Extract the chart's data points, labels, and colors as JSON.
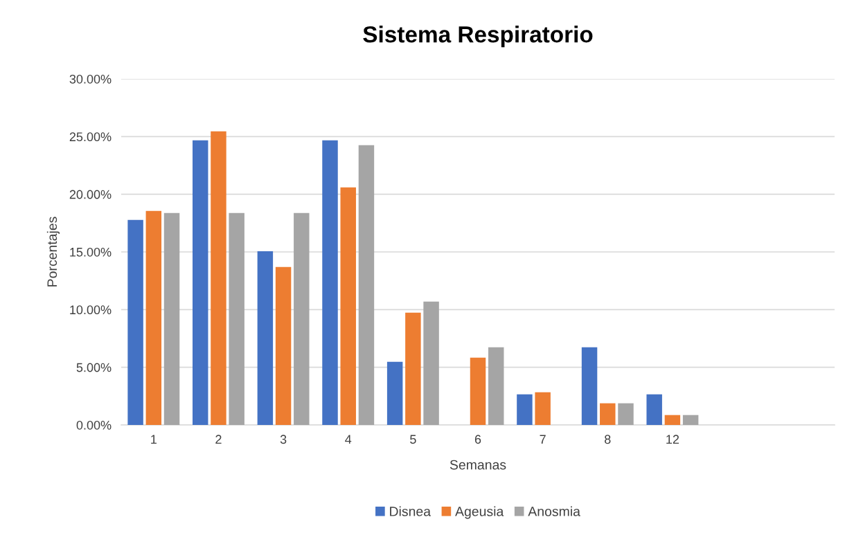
{
  "chart_data": {
    "type": "bar",
    "title": "Sistema Respiratorio",
    "xlabel": "Semanas",
    "ylabel": "Porcentajes",
    "categories": [
      "1",
      "2",
      "3",
      "4",
      "5",
      "6",
      "7",
      "8",
      "12",
      null,
      null
    ],
    "series": [
      {
        "name": "Disnea",
        "color": "#4472c4",
        "values": [
          17.78,
          24.68,
          15.06,
          24.68,
          5.48,
          0,
          2.66,
          6.74,
          2.66,
          null,
          null
        ]
      },
      {
        "name": "Ageusia",
        "color": "#ed7d31",
        "values": [
          18.56,
          25.46,
          13.7,
          20.6,
          9.74,
          5.84,
          2.84,
          1.88,
          0.86,
          null,
          null
        ]
      },
      {
        "name": "Anosmia",
        "color": "#a5a5a5",
        "values": [
          18.38,
          18.38,
          18.38,
          24.26,
          10.7,
          6.74,
          0,
          1.88,
          0.86,
          null,
          null
        ]
      }
    ],
    "ylim": [
      0,
      30
    ],
    "yticks": [
      {
        "value": 0,
        "label": "0.00%"
      },
      {
        "value": 5,
        "label": "5.00%"
      },
      {
        "value": 10,
        "label": "10.00%"
      },
      {
        "value": 15,
        "label": "15.00%"
      },
      {
        "value": 20,
        "label": "20.00%"
      },
      {
        "value": 25,
        "label": "25.00%"
      },
      {
        "value": 30,
        "label": "30.00%"
      }
    ],
    "grid": "y",
    "legend": "bottom"
  }
}
